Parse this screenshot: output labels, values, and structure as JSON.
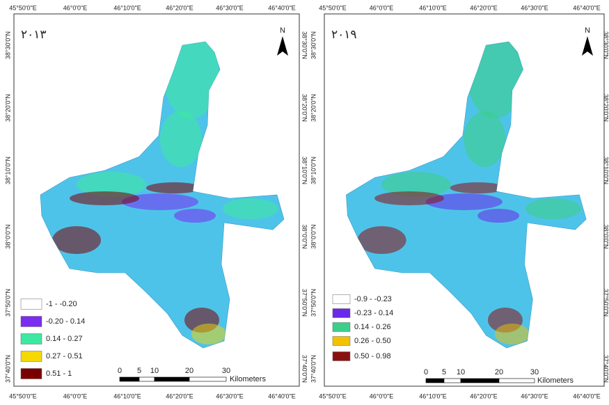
{
  "panels": [
    {
      "year": "۲۰۱۳",
      "north": "N",
      "top_coords": [
        "45°50'0\"E",
        "46°0'0\"E",
        "46°10'0\"E",
        "46°20'0\"E",
        "46°30'0\"E",
        "46°40'0\"E"
      ],
      "bottom_coords": [
        "45°50'0\"E",
        "46°0'0\"E",
        "46°10'0\"E",
        "46°20'0\"E",
        "46°30'0\"E",
        "46°40'0\"E"
      ],
      "left_coords": [
        "38°30'0\"N",
        "38°20'0\"N",
        "38°10'0\"N",
        "38°0'0\"N",
        "37°50'0\"N",
        "37°40'0\"N"
      ],
      "right_coords": [
        "38°30'0\"N",
        "38°20'0\"N",
        "38°10'0\"N",
        "38°0'0\"N",
        "37°50'0\"N",
        "37°40'0\"N"
      ],
      "legend": [
        {
          "label": "-1 - -0.20",
          "color": "#ffffff"
        },
        {
          "label": "-0.20 - 0.14",
          "color": "#7a2cf0"
        },
        {
          "label": "0.14 - 0.27",
          "color": "#3ee8a0"
        },
        {
          "label": "0.27 - 0.51",
          "color": "#f5d800"
        },
        {
          "label": "0.51 - 1",
          "color": "#7a0000"
        }
      ],
      "scale_labels": [
        "0",
        "5",
        "10",
        "20",
        "30"
      ],
      "scale_unit": "Kilometers"
    },
    {
      "year": "۲۰۱۹",
      "north": "N",
      "top_coords": [
        "45°50'0\"E",
        "46°0'0\"E",
        "46°10'0\"E",
        "46°20'0\"E",
        "46°30'0\"E",
        "46°40'0\"E"
      ],
      "bottom_coords": [
        "45°50'0\"E",
        "46°0'0\"E",
        "46°10'0\"E",
        "46°20'0\"E",
        "46°30'0\"E",
        "46°40'0\"E"
      ],
      "left_coords": [
        "38°30'0\"N",
        "38°20'0\"N",
        "38°10'0\"N",
        "38°0'0\"N",
        "37°50'0\"N",
        "37°40'0\"N"
      ],
      "right_coords": [
        "38°30'0\"N",
        "38°20'0\"N",
        "38°10'0\"N",
        "38°0'0\"N",
        "37°50'0\"N",
        "37°40'0\"N"
      ],
      "legend": [
        {
          "label": "-0.9 - -0.23",
          "color": "#ffffff"
        },
        {
          "label": "-0.23 - 0.14",
          "color": "#6a28e8"
        },
        {
          "label": "0.14 - 0.26",
          "color": "#3ccf8a"
        },
        {
          "label": "0.26 - 0.50",
          "color": "#f2c200"
        },
        {
          "label": "0.50 - 0.98",
          "color": "#8a1010"
        }
      ],
      "scale_labels": [
        "0",
        "5",
        "10",
        "20",
        "30"
      ],
      "scale_unit": "Kilometers"
    }
  ]
}
